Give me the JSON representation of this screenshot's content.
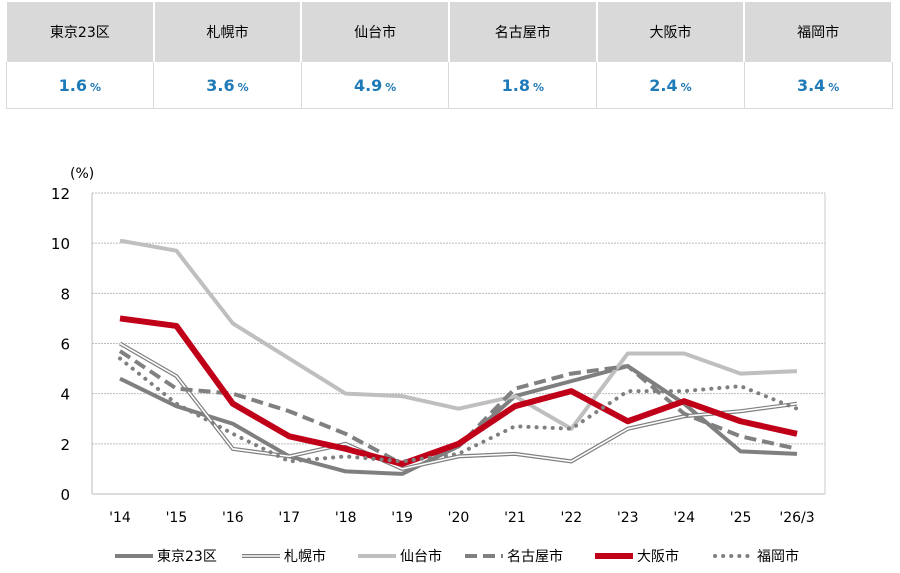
{
  "summary": [
    {
      "city": "東京23区",
      "value": "1.6",
      "unit": "%"
    },
    {
      "city": "札幌市",
      "value": "3.6",
      "unit": "%"
    },
    {
      "city": "仙台市",
      "value": "4.9",
      "unit": "%"
    },
    {
      "city": "名古屋市",
      "value": "1.8",
      "unit": "%"
    },
    {
      "city": "大阪市",
      "value": "2.4",
      "unit": "%"
    },
    {
      "city": "福岡市",
      "value": "3.4",
      "unit": "%"
    }
  ],
  "chart_data": {
    "type": "line",
    "ylabel": "(%)",
    "ylim": [
      0,
      12
    ],
    "yticks": [
      0,
      2,
      4,
      6,
      8,
      10,
      12
    ],
    "grid": true,
    "legend": "bottom",
    "categories": [
      "'14",
      "'15",
      "'16",
      "'17",
      "'18",
      "'19",
      "'20",
      "'21",
      "'22",
      "'23",
      "'24",
      "'25",
      "'26/3"
    ],
    "series": [
      {
        "name": "東京23区",
        "style": "solid-thick",
        "color": "#7f7f7f",
        "values": [
          4.6,
          3.5,
          2.8,
          1.5,
          0.9,
          0.8,
          1.9,
          3.9,
          4.5,
          5.1,
          3.6,
          1.7,
          1.6
        ]
      },
      {
        "name": "札幌市",
        "style": "double",
        "color": "#7f7f7f",
        "values": [
          6.0,
          4.7,
          1.8,
          1.5,
          2.0,
          1.0,
          1.5,
          1.6,
          1.3,
          2.6,
          3.1,
          3.3,
          3.6
        ]
      },
      {
        "name": "仙台市",
        "style": "solid",
        "color": "#bfbfbf",
        "values": [
          10.1,
          9.7,
          6.8,
          5.4,
          4.0,
          3.9,
          3.4,
          3.9,
          2.6,
          5.6,
          5.6,
          4.8,
          4.9
        ]
      },
      {
        "name": "名古屋市",
        "style": "dashed",
        "color": "#808080",
        "values": [
          5.7,
          4.2,
          4.0,
          3.3,
          2.4,
          1.2,
          1.9,
          4.2,
          4.8,
          5.1,
          3.2,
          2.3,
          1.8
        ]
      },
      {
        "name": "大阪市",
        "style": "solid-bold",
        "color": "#c00018",
        "values": [
          7.0,
          6.7,
          3.6,
          2.3,
          1.8,
          1.2,
          2.0,
          3.5,
          4.1,
          2.9,
          3.7,
          2.9,
          2.4
        ]
      },
      {
        "name": "福岡市",
        "style": "dotted",
        "color": "#808080",
        "values": [
          5.4,
          3.6,
          2.4,
          1.3,
          1.5,
          1.3,
          1.6,
          2.7,
          2.6,
          4.1,
          4.1,
          4.3,
          3.4
        ]
      }
    ]
  }
}
